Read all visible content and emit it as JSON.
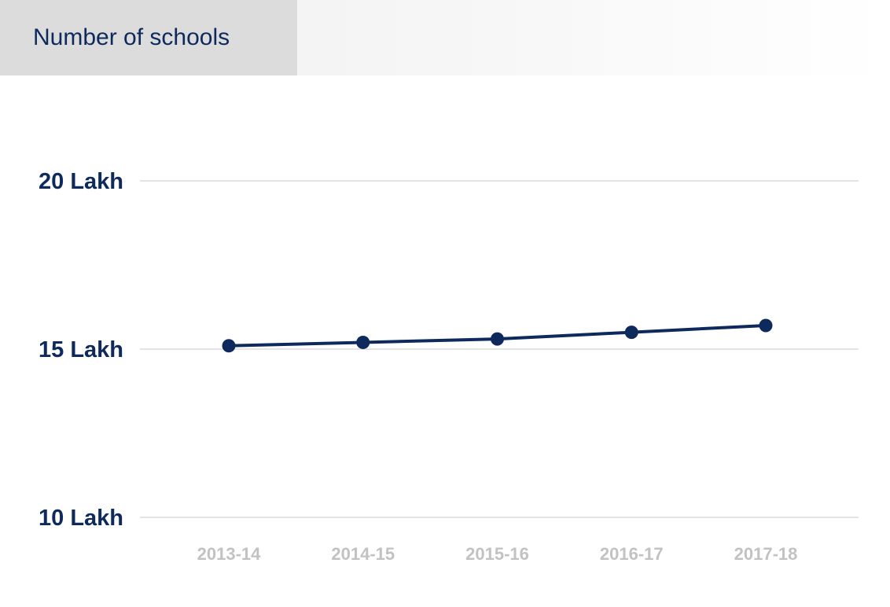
{
  "tab": {
    "label": "Number of schools"
  },
  "chart_data": {
    "type": "line",
    "title": "",
    "xlabel": "",
    "ylabel": "",
    "categories": [
      "2013-14",
      "2014-15",
      "2015-16",
      "2016-17",
      "2017-18"
    ],
    "series": [
      {
        "values": [
          15.1,
          15.2,
          15.3,
          15.5,
          15.7
        ]
      }
    ],
    "ylim": [
      10,
      20
    ],
    "yticks": [
      {
        "value": 10,
        "label": "10 Lakh"
      },
      {
        "value": 15,
        "label": "15 Lakh"
      },
      {
        "value": 20,
        "label": "20 Lakh"
      }
    ],
    "grid": true,
    "colors": {
      "line": "#0e2a5c",
      "grid": "#c8c8c8",
      "xtick": "#c2c2c2",
      "ytick": "#0e2a5c"
    }
  }
}
